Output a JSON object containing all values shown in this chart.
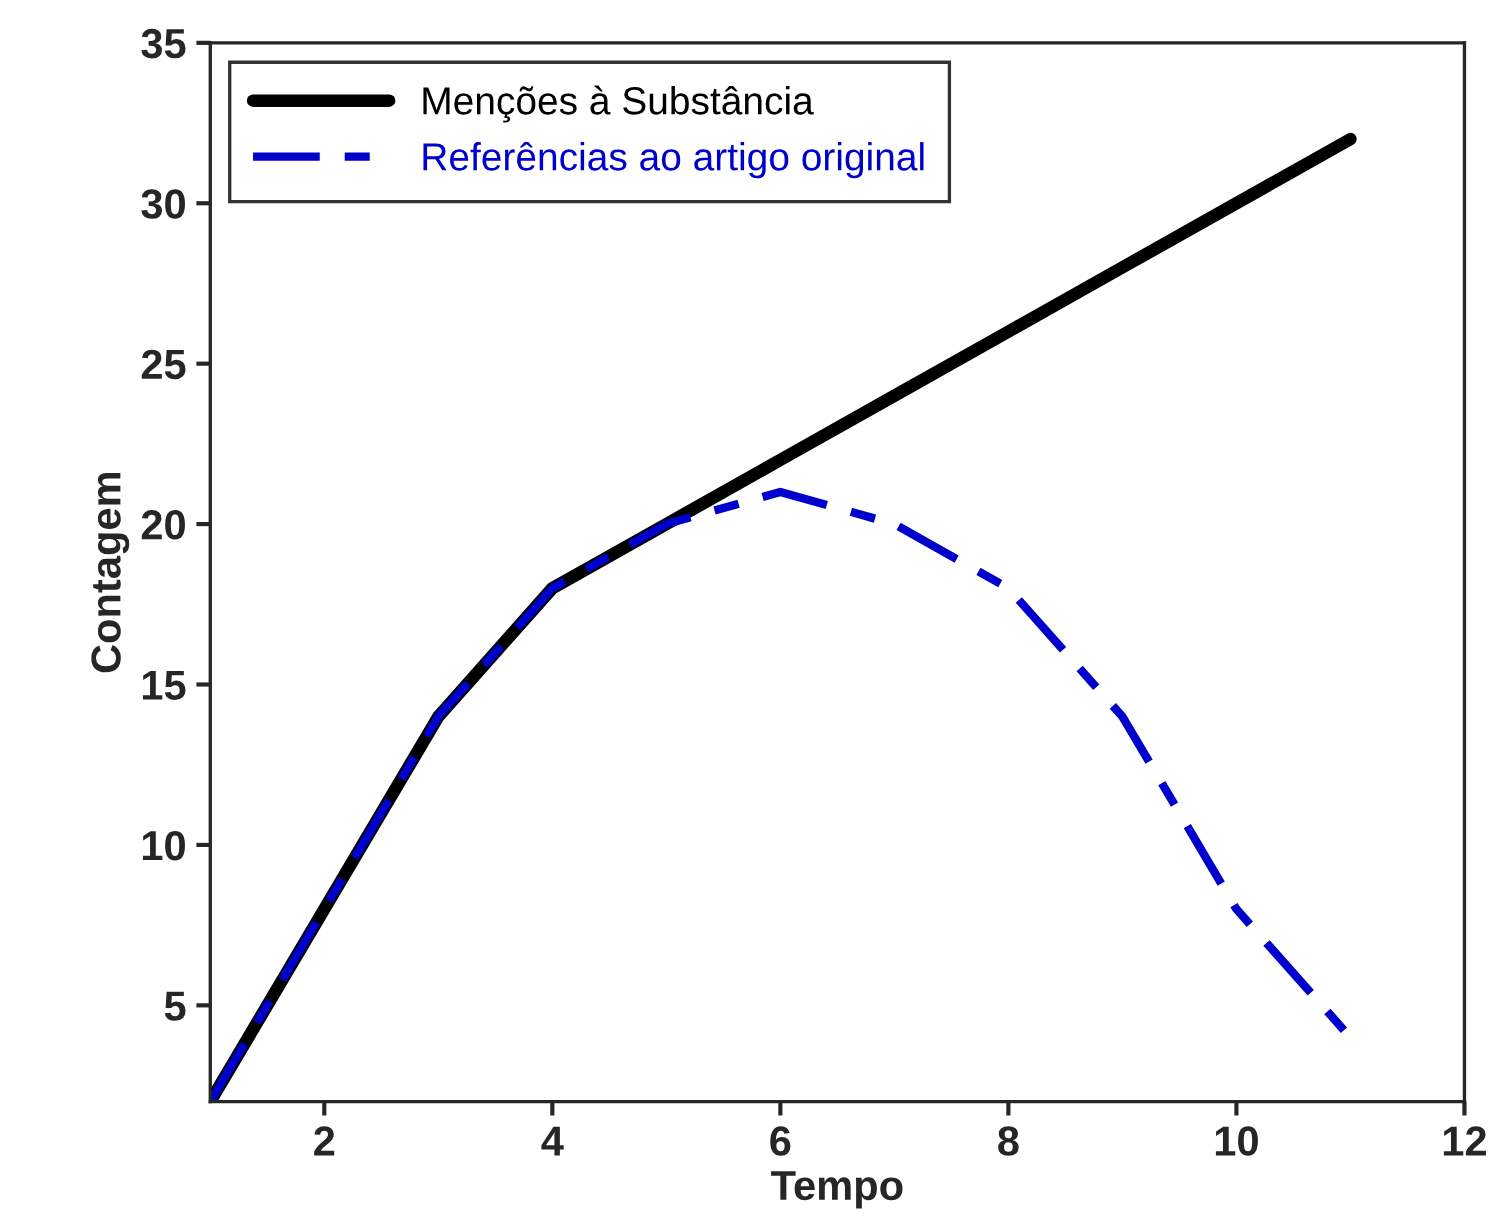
{
  "chart_data": {
    "type": "line",
    "xlabel": "Tempo",
    "ylabel": "Contagem",
    "x": [
      1,
      2,
      3,
      4,
      5,
      6,
      7,
      8,
      9,
      10,
      11
    ],
    "series": [
      {
        "name": "Menções à Substância",
        "color": "#000000",
        "line_style": "solid",
        "values": [
          2,
          8,
          14,
          18,
          20,
          22,
          24,
          26,
          28,
          30,
          32
        ]
      },
      {
        "name": "Referências ao artigo original",
        "color": "#0000cc",
        "line_style": "dashed",
        "values": [
          2,
          8,
          14,
          18,
          20,
          21,
          20,
          18,
          14,
          8,
          4
        ]
      }
    ],
    "xlim": [
      1,
      12
    ],
    "xticks": [
      2,
      4,
      6,
      8,
      10,
      12
    ],
    "ylim": [
      2,
      35
    ],
    "yticks": [
      5,
      10,
      15,
      20,
      25,
      30,
      35
    ],
    "grid": false,
    "legend": "top left",
    "marker": "none"
  }
}
